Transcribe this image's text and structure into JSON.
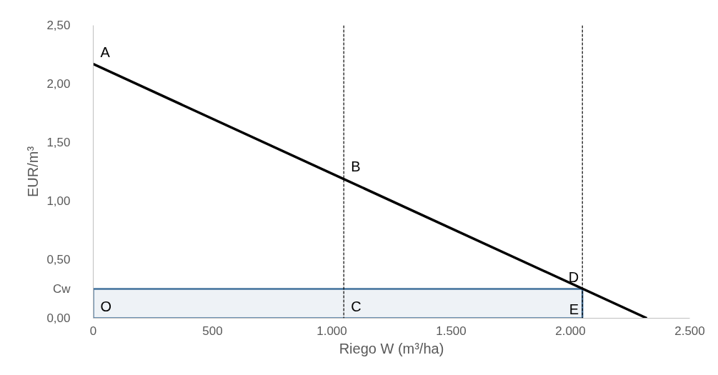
{
  "chart_data": {
    "type": "line",
    "xlabel": "Riego W (m³/ha)",
    "ylabel": "EUR/m³",
    "xlim": [
      0,
      2500
    ],
    "ylim": [
      0,
      2.5
    ],
    "xticks": [
      0,
      500,
      {
        "value": 1000,
        "label": "1.000"
      },
      {
        "value": 1500,
        "label": "1.500"
      },
      {
        "value": 2000,
        "label": "2.000"
      },
      {
        "value": 2500,
        "label": "2.500"
      }
    ],
    "yticks": [
      {
        "value": 0,
        "label": "0,00"
      },
      {
        "value": 0.25,
        "label": "Cw"
      },
      {
        "value": 0.5,
        "label": "0,50"
      },
      {
        "value": 1,
        "label": "1,00"
      },
      {
        "value": 1.5,
        "label": "1,50"
      },
      {
        "value": 2,
        "label": "2,00"
      },
      {
        "value": 2.5,
        "label": "2,50"
      }
    ],
    "grid": false,
    "marker": "none",
    "line_style": "solid",
    "series": [
      {
        "type": "area",
        "color": "#41719c",
        "x": [
          0,
          2050
        ],
        "values": [
          0.25,
          0.25
        ]
      },
      {
        "color": "#000000",
        "x": [
          0,
          2320
        ],
        "values": [
          2.17,
          0
        ]
      }
    ],
    "ref_lines": [
      {
        "axis": "x",
        "value": 1050,
        "color": "#000000",
        "line_style": "dashed"
      },
      {
        "axis": "x",
        "value": 2050,
        "color": "#000000",
        "line_style": "dashed"
      }
    ],
    "annotations": [
      {
        "text": "A",
        "x": 0,
        "y": 2.17
      },
      {
        "text": "B",
        "x": 1050,
        "y": 1.19
      },
      {
        "text": "C",
        "x": 1050,
        "y": 0
      },
      {
        "text": "D",
        "x": 2050,
        "y": 0.25
      },
      {
        "text": "E",
        "x": 2050,
        "y": 0
      },
      {
        "text": "O",
        "x": 0,
        "y": 0
      }
    ]
  }
}
